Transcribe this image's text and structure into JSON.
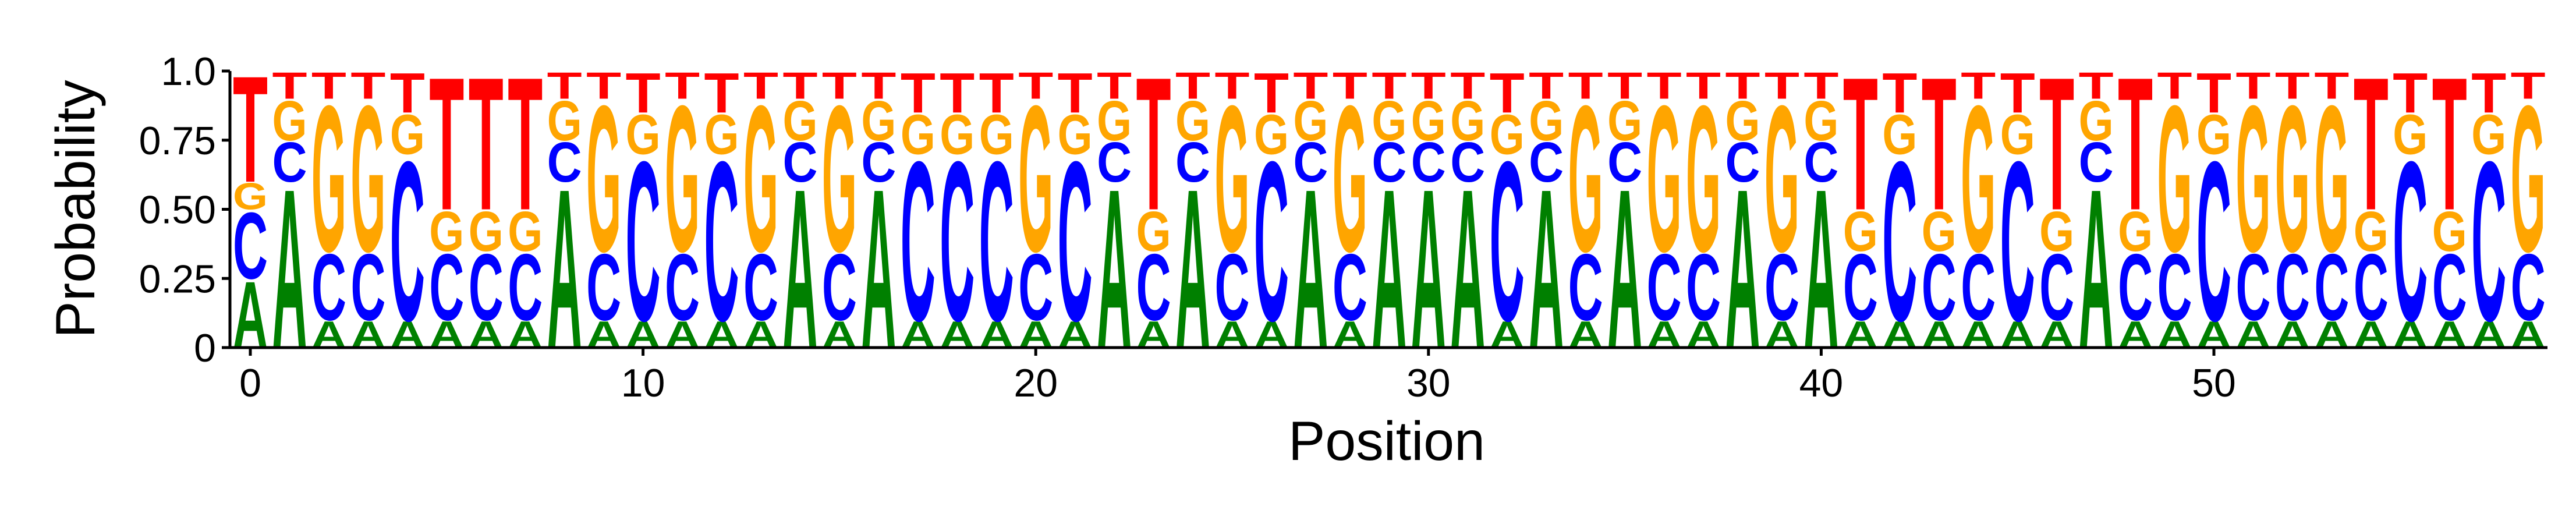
{
  "chart_data": {
    "type": "sequence-logo",
    "title": "",
    "xlabel": "Position",
    "ylabel": "Probability",
    "ylim": [
      0,
      1
    ],
    "yticks": [
      0,
      0.25,
      0.5,
      0.75,
      1.0
    ],
    "ytick_labels": [
      "0",
      "0.25",
      "0.50",
      "0.75",
      "1.0"
    ],
    "xticks": [
      0,
      10,
      20,
      30,
      40,
      50
    ],
    "xtick_labels": [
      "0",
      "10",
      "20",
      "30",
      "40",
      "50"
    ],
    "grid": false,
    "colors": {
      "A": "#008000",
      "C": "#0000ff",
      "G": "#ffa500",
      "T": "#ff0000"
    },
    "stack_order_bottom_to_top": [
      "A",
      "C",
      "G",
      "T"
    ],
    "positions": [
      {
        "A": 0.25,
        "C": 0.25,
        "G": 0.1,
        "T": 0.4
      },
      {
        "A": 0.6,
        "C": 0.15,
        "G": 0.15,
        "T": 0.1
      },
      {
        "A": 0.1,
        "C": 0.25,
        "G": 0.55,
        "T": 0.1
      },
      {
        "A": 0.1,
        "C": 0.25,
        "G": 0.55,
        "T": 0.1
      },
      {
        "A": 0.1,
        "C": 0.6,
        "G": 0.15,
        "T": 0.15
      },
      {
        "A": 0.1,
        "C": 0.25,
        "G": 0.15,
        "T": 0.5
      },
      {
        "A": 0.1,
        "C": 0.25,
        "G": 0.15,
        "T": 0.5
      },
      {
        "A": 0.1,
        "C": 0.25,
        "G": 0.15,
        "T": 0.5
      },
      {
        "A": 0.6,
        "C": 0.15,
        "G": 0.15,
        "T": 0.1
      },
      {
        "A": 0.1,
        "C": 0.25,
        "G": 0.55,
        "T": 0.1
      },
      {
        "A": 0.1,
        "C": 0.6,
        "G": 0.15,
        "T": 0.15
      },
      {
        "A": 0.1,
        "C": 0.25,
        "G": 0.55,
        "T": 0.1
      },
      {
        "A": 0.1,
        "C": 0.6,
        "G": 0.15,
        "T": 0.15
      },
      {
        "A": 0.1,
        "C": 0.25,
        "G": 0.55,
        "T": 0.1
      },
      {
        "A": 0.6,
        "C": 0.15,
        "G": 0.15,
        "T": 0.1
      },
      {
        "A": 0.1,
        "C": 0.25,
        "G": 0.55,
        "T": 0.1
      },
      {
        "A": 0.6,
        "C": 0.15,
        "G": 0.15,
        "T": 0.1
      },
      {
        "A": 0.1,
        "C": 0.6,
        "G": 0.15,
        "T": 0.15
      },
      {
        "A": 0.1,
        "C": 0.6,
        "G": 0.15,
        "T": 0.15
      },
      {
        "A": 0.1,
        "C": 0.6,
        "G": 0.15,
        "T": 0.15
      },
      {
        "A": 0.1,
        "C": 0.25,
        "G": 0.55,
        "T": 0.1
      },
      {
        "A": 0.1,
        "C": 0.6,
        "G": 0.15,
        "T": 0.15
      },
      {
        "A": 0.6,
        "C": 0.15,
        "G": 0.15,
        "T": 0.1
      },
      {
        "A": 0.1,
        "C": 0.25,
        "G": 0.15,
        "T": 0.5
      },
      {
        "A": 0.6,
        "C": 0.15,
        "G": 0.15,
        "T": 0.1
      },
      {
        "A": 0.1,
        "C": 0.25,
        "G": 0.55,
        "T": 0.1
      },
      {
        "A": 0.1,
        "C": 0.6,
        "G": 0.15,
        "T": 0.15
      },
      {
        "A": 0.6,
        "C": 0.15,
        "G": 0.15,
        "T": 0.1
      },
      {
        "A": 0.1,
        "C": 0.25,
        "G": 0.55,
        "T": 0.1
      },
      {
        "A": 0.6,
        "C": 0.15,
        "G": 0.15,
        "T": 0.1
      },
      {
        "A": 0.6,
        "C": 0.15,
        "G": 0.15,
        "T": 0.1
      },
      {
        "A": 0.6,
        "C": 0.15,
        "G": 0.15,
        "T": 0.1
      },
      {
        "A": 0.1,
        "C": 0.6,
        "G": 0.15,
        "T": 0.15
      },
      {
        "A": 0.6,
        "C": 0.15,
        "G": 0.15,
        "T": 0.1
      },
      {
        "A": 0.1,
        "C": 0.25,
        "G": 0.55,
        "T": 0.1
      },
      {
        "A": 0.6,
        "C": 0.15,
        "G": 0.15,
        "T": 0.1
      },
      {
        "A": 0.1,
        "C": 0.25,
        "G": 0.55,
        "T": 0.1
      },
      {
        "A": 0.1,
        "C": 0.25,
        "G": 0.55,
        "T": 0.1
      },
      {
        "A": 0.6,
        "C": 0.15,
        "G": 0.15,
        "T": 0.1
      },
      {
        "A": 0.1,
        "C": 0.25,
        "G": 0.55,
        "T": 0.1
      },
      {
        "A": 0.6,
        "C": 0.15,
        "G": 0.15,
        "T": 0.1
      },
      {
        "A": 0.1,
        "C": 0.25,
        "G": 0.15,
        "T": 0.5
      },
      {
        "A": 0.1,
        "C": 0.6,
        "G": 0.15,
        "T": 0.15
      },
      {
        "A": 0.1,
        "C": 0.25,
        "G": 0.15,
        "T": 0.5
      },
      {
        "A": 0.1,
        "C": 0.25,
        "G": 0.55,
        "T": 0.1
      },
      {
        "A": 0.1,
        "C": 0.6,
        "G": 0.15,
        "T": 0.15
      },
      {
        "A": 0.1,
        "C": 0.25,
        "G": 0.15,
        "T": 0.5
      },
      {
        "A": 0.6,
        "C": 0.15,
        "G": 0.15,
        "T": 0.1
      },
      {
        "A": 0.1,
        "C": 0.25,
        "G": 0.15,
        "T": 0.5
      },
      {
        "A": 0.1,
        "C": 0.25,
        "G": 0.55,
        "T": 0.1
      },
      {
        "A": 0.1,
        "C": 0.6,
        "G": 0.15,
        "T": 0.15
      },
      {
        "A": 0.1,
        "C": 0.25,
        "G": 0.55,
        "T": 0.1
      },
      {
        "A": 0.1,
        "C": 0.25,
        "G": 0.55,
        "T": 0.1
      },
      {
        "A": 0.1,
        "C": 0.25,
        "G": 0.55,
        "T": 0.1
      },
      {
        "A": 0.1,
        "C": 0.25,
        "G": 0.15,
        "T": 0.5
      },
      {
        "A": 0.1,
        "C": 0.6,
        "G": 0.15,
        "T": 0.15
      },
      {
        "A": 0.1,
        "C": 0.25,
        "G": 0.15,
        "T": 0.5
      },
      {
        "A": 0.1,
        "C": 0.6,
        "G": 0.15,
        "T": 0.15
      },
      {
        "A": 0.1,
        "C": 0.25,
        "G": 0.55,
        "T": 0.1
      }
    ]
  }
}
